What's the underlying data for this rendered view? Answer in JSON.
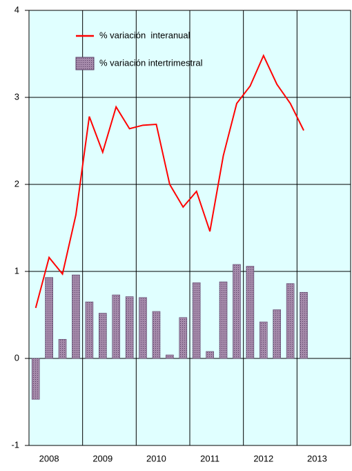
{
  "chart_data": {
    "type": "bar-line",
    "categories": [
      null,
      "2008",
      null,
      null,
      null,
      "2009",
      null,
      null,
      null,
      "2010",
      null,
      null,
      null,
      "2011",
      null,
      null,
      null,
      "2012",
      null,
      null,
      null,
      "2013",
      null,
      null
    ],
    "series": [
      {
        "name": "% variación  interanual",
        "type": "line",
        "color": "#ff0000",
        "values": [
          0.58,
          1.16,
          0.97,
          1.65,
          2.78,
          2.37,
          2.89,
          2.64,
          2.68,
          2.69,
          2.0,
          1.74,
          1.92,
          1.46,
          2.33,
          2.93,
          3.13,
          3.48,
          3.15,
          2.93,
          2.62,
          null,
          null,
          null
        ]
      },
      {
        "name": "% variación intertrimestral",
        "type": "bar",
        "color": "#937199",
        "values": [
          -0.47,
          0.93,
          0.22,
          0.96,
          0.65,
          0.52,
          0.73,
          0.71,
          0.7,
          0.54,
          0.04,
          0.47,
          0.87,
          0.08,
          0.88,
          1.08,
          1.06,
          0.42,
          0.56,
          0.86,
          0.76,
          null,
          null,
          null
        ]
      }
    ],
    "ylim": [
      -1,
      4
    ],
    "yticks": [
      -1,
      0,
      1,
      2,
      3,
      4
    ],
    "grid": true,
    "background": "#e0ffff"
  }
}
